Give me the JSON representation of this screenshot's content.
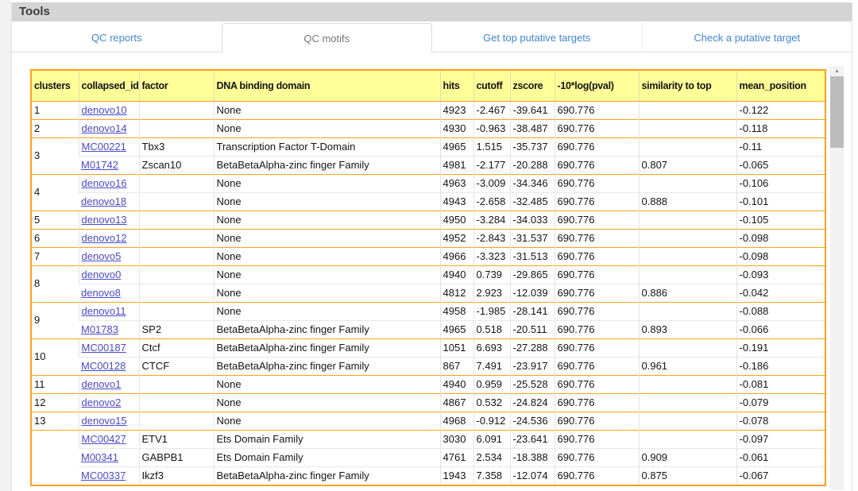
{
  "panel_title": "Tools",
  "tabs": [
    {
      "label": "QC reports",
      "active": false
    },
    {
      "label": "QC motifs",
      "active": true
    },
    {
      "label": "Get top putative targets",
      "active": false
    },
    {
      "label": "Check a putative target",
      "active": false
    }
  ],
  "table": {
    "columns": [
      "clusters",
      "collapsed_id",
      "factor",
      "DNA binding domain",
      "hits",
      "cutoff",
      "zscore",
      "-10*log(pval)",
      "similarity to top",
      "mean_position"
    ],
    "groups": [
      {
        "cluster": "1",
        "rows": [
          {
            "collapsed_id": "denovo10",
            "factor": "",
            "dna_binding_domain": "None",
            "hits": "4923",
            "cutoff": "-2.467",
            "zscore": "-39.641",
            "log_pval": "690.776",
            "similarity_to_top": "",
            "mean_position": "-0.122"
          }
        ]
      },
      {
        "cluster": "2",
        "rows": [
          {
            "collapsed_id": "denovo14",
            "factor": "",
            "dna_binding_domain": "None",
            "hits": "4930",
            "cutoff": "-0.963",
            "zscore": "-38.487",
            "log_pval": "690.776",
            "similarity_to_top": "",
            "mean_position": "-0.118"
          }
        ]
      },
      {
        "cluster": "3",
        "rows": [
          {
            "collapsed_id": "MC00221",
            "factor": "Tbx3",
            "dna_binding_domain": "Transcription Factor T-Domain",
            "hits": "4965",
            "cutoff": "1.515",
            "zscore": "-35.737",
            "log_pval": "690.776",
            "similarity_to_top": "",
            "mean_position": "-0.11"
          },
          {
            "collapsed_id": "M01742",
            "factor": "Zscan10",
            "dna_binding_domain": "BetaBetaAlpha-zinc finger Family",
            "hits": "4981",
            "cutoff": "-2.177",
            "zscore": "-20.288",
            "log_pval": "690.776",
            "similarity_to_top": "0.807",
            "mean_position": "-0.065"
          }
        ]
      },
      {
        "cluster": "4",
        "rows": [
          {
            "collapsed_id": "denovo16",
            "factor": "",
            "dna_binding_domain": "None",
            "hits": "4963",
            "cutoff": "-3.009",
            "zscore": "-34.346",
            "log_pval": "690.776",
            "similarity_to_top": "",
            "mean_position": "-0.106"
          },
          {
            "collapsed_id": "denovo18",
            "factor": "",
            "dna_binding_domain": "None",
            "hits": "4943",
            "cutoff": "-2.658",
            "zscore": "-32.485",
            "log_pval": "690.776",
            "similarity_to_top": "0.888",
            "mean_position": "-0.101"
          }
        ]
      },
      {
        "cluster": "5",
        "rows": [
          {
            "collapsed_id": "denovo13",
            "factor": "",
            "dna_binding_domain": "None",
            "hits": "4950",
            "cutoff": "-3.284",
            "zscore": "-34.033",
            "log_pval": "690.776",
            "similarity_to_top": "",
            "mean_position": "-0.105"
          }
        ]
      },
      {
        "cluster": "6",
        "rows": [
          {
            "collapsed_id": "denovo12",
            "factor": "",
            "dna_binding_domain": "None",
            "hits": "4952",
            "cutoff": "-2.843",
            "zscore": "-31.537",
            "log_pval": "690.776",
            "similarity_to_top": "",
            "mean_position": "-0.098"
          }
        ]
      },
      {
        "cluster": "7",
        "rows": [
          {
            "collapsed_id": "denovo5",
            "factor": "",
            "dna_binding_domain": "None",
            "hits": "4966",
            "cutoff": "-3.323",
            "zscore": "-31.513",
            "log_pval": "690.776",
            "similarity_to_top": "",
            "mean_position": "-0.098"
          }
        ]
      },
      {
        "cluster": "8",
        "rows": [
          {
            "collapsed_id": "denovo0",
            "factor": "",
            "dna_binding_domain": "None",
            "hits": "4940",
            "cutoff": "0.739",
            "zscore": "-29.865",
            "log_pval": "690.776",
            "similarity_to_top": "",
            "mean_position": "-0.093"
          },
          {
            "collapsed_id": "denovo8",
            "factor": "",
            "dna_binding_domain": "None",
            "hits": "4812",
            "cutoff": "2.923",
            "zscore": "-12.039",
            "log_pval": "690.776",
            "similarity_to_top": "0.886",
            "mean_position": "-0.042"
          }
        ]
      },
      {
        "cluster": "9",
        "rows": [
          {
            "collapsed_id": "denovo11",
            "factor": "",
            "dna_binding_domain": "None",
            "hits": "4958",
            "cutoff": "-1.985",
            "zscore": "-28.141",
            "log_pval": "690.776",
            "similarity_to_top": "",
            "mean_position": "-0.088"
          },
          {
            "collapsed_id": "M01783",
            "factor": "SP2",
            "dna_binding_domain": "BetaBetaAlpha-zinc finger Family",
            "hits": "4965",
            "cutoff": "0.518",
            "zscore": "-20.511",
            "log_pval": "690.776",
            "similarity_to_top": "0.893",
            "mean_position": "-0.066"
          }
        ]
      },
      {
        "cluster": "10",
        "rows": [
          {
            "collapsed_id": "MC00187",
            "factor": "Ctcf",
            "dna_binding_domain": "BetaBetaAlpha-zinc finger Family",
            "hits": "1051",
            "cutoff": "6.693",
            "zscore": "-27.288",
            "log_pval": "690.776",
            "similarity_to_top": "",
            "mean_position": "-0.191"
          },
          {
            "collapsed_id": "MC00128",
            "factor": "CTCF",
            "dna_binding_domain": "BetaBetaAlpha-zinc finger Family",
            "hits": "867",
            "cutoff": "7.491",
            "zscore": "-23.917",
            "log_pval": "690.776",
            "similarity_to_top": "0.961",
            "mean_position": "-0.186"
          }
        ]
      },
      {
        "cluster": "11",
        "rows": [
          {
            "collapsed_id": "denovo1",
            "factor": "",
            "dna_binding_domain": "None",
            "hits": "4940",
            "cutoff": "0.959",
            "zscore": "-25.528",
            "log_pval": "690.776",
            "similarity_to_top": "",
            "mean_position": "-0.081"
          }
        ]
      },
      {
        "cluster": "12",
        "rows": [
          {
            "collapsed_id": "denovo2",
            "factor": "",
            "dna_binding_domain": "None",
            "hits": "4867",
            "cutoff": "0.532",
            "zscore": "-24.824",
            "log_pval": "690.776",
            "similarity_to_top": "",
            "mean_position": "-0.079"
          }
        ]
      },
      {
        "cluster": "13",
        "rows": [
          {
            "collapsed_id": "denovo15",
            "factor": "",
            "dna_binding_domain": "None",
            "hits": "4968",
            "cutoff": "-0.912",
            "zscore": "-24.536",
            "log_pval": "690.776",
            "similarity_to_top": "",
            "mean_position": "-0.078"
          }
        ]
      },
      {
        "cluster": "",
        "rows": [
          {
            "collapsed_id": "MC00427",
            "factor": "ETV1",
            "dna_binding_domain": "Ets Domain Family",
            "hits": "3030",
            "cutoff": "6.091",
            "zscore": "-23.641",
            "log_pval": "690.776",
            "similarity_to_top": "",
            "mean_position": "-0.097"
          },
          {
            "collapsed_id": "M00341",
            "factor": "GABPB1",
            "dna_binding_domain": "Ets Domain Family",
            "hits": "4761",
            "cutoff": "2.534",
            "zscore": "-18.388",
            "log_pval": "690.776",
            "similarity_to_top": "0.909",
            "mean_position": "-0.061"
          },
          {
            "collapsed_id": "MC00337",
            "factor": "Ikzf3",
            "dna_binding_domain": "BetaBetaAlpha-zinc finger Family",
            "hits": "1943",
            "cutoff": "7.358",
            "zscore": "-12.074",
            "log_pval": "690.776",
            "similarity_to_top": "0.875",
            "mean_position": "-0.067"
          }
        ]
      }
    ]
  },
  "scrollbar": {
    "up_arrow_icon": "▲"
  },
  "colors": {
    "toolbar_bg": "#d4d4d4",
    "tab_link": "#4285d2",
    "active_tab_text": "#777777",
    "tab_border": "#d9d9d9",
    "header_bg": "#ffff99",
    "table_border": "#ffa01e",
    "row_divider": "#e8e8e8",
    "column_divider": "#e4e4e4",
    "link": "#4a49c9",
    "scrollbar_track": "#f2f2f2",
    "scrollbar_thumb": "#bcbcbc"
  }
}
